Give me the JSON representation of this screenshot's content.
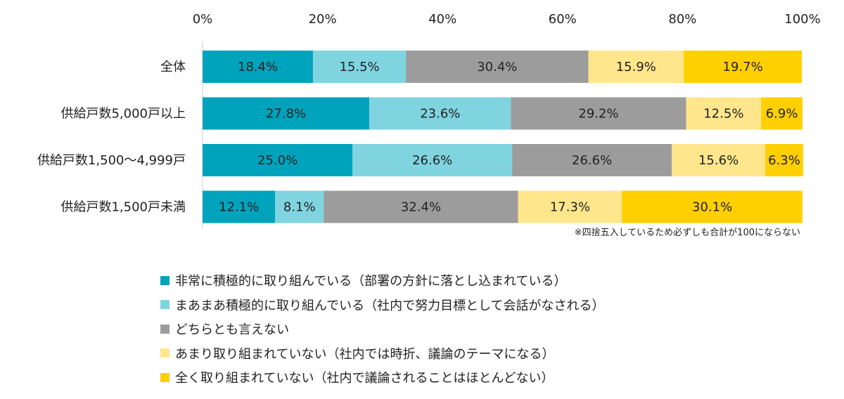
{
  "chart_data": {
    "type": "bar",
    "orientation": "horizontal",
    "stacked": true,
    "xlim": [
      0,
      100
    ],
    "x_ticks": [
      "0%",
      "20%",
      "40%",
      "60%",
      "80%",
      "100%"
    ],
    "categories": [
      "全体",
      "供給戸数5,000戸以上",
      "供給戸数1,500〜4,999戸",
      "供給戸数1,500戸未満"
    ],
    "series": [
      {
        "name": "非常に積極的に取り組んでいる（部署の方針に落とし込まれている）",
        "color": "#00A3BC",
        "values": [
          18.4,
          27.8,
          25.0,
          12.1
        ],
        "labels": [
          "18.4%",
          "27.8%",
          "25.0%",
          "12.1%"
        ]
      },
      {
        "name": "まあまあ積極的に取り組んでいる（社内で努力目標として会話がなされる）",
        "color": "#7FD4E0",
        "values": [
          15.5,
          23.6,
          26.6,
          8.1
        ],
        "labels": [
          "15.5%",
          "23.6%",
          "26.6%",
          "8.1%"
        ]
      },
      {
        "name": "どちらとも言えない",
        "color": "#9C9C9C",
        "values": [
          30.4,
          29.2,
          26.6,
          32.4
        ],
        "labels": [
          "30.4%",
          "29.2%",
          "26.6%",
          "32.4%"
        ]
      },
      {
        "name": "あまり取り組まれていない（社内では時折、議論のテーマになる）",
        "color": "#FFE68C",
        "values": [
          15.9,
          12.5,
          15.6,
          17.3
        ],
        "labels": [
          "15.9%",
          "12.5%",
          "15.6%",
          "17.3%"
        ]
      },
      {
        "name": "全く取り組まれていない（社内で議論されることはほとんどない）",
        "color": "#FFCF00",
        "values": [
          19.7,
          6.9,
          6.3,
          30.1
        ],
        "labels": [
          "19.7%",
          "6.9%",
          "6.3%",
          "30.1%"
        ]
      }
    ],
    "legend_placement": "bottom-left",
    "grid": false
  },
  "note": "※四捨五入しているため必ずしも合計が100にならない"
}
